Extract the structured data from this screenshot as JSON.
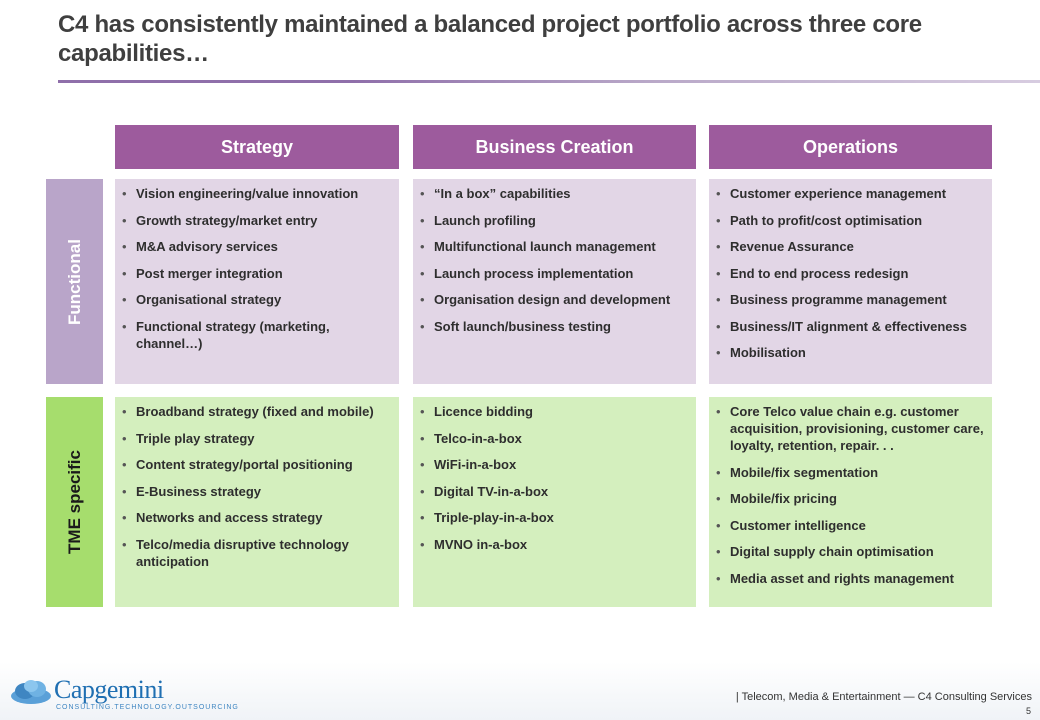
{
  "title": "C4 has consistently maintained a balanced project portfolio across three core capabilities…",
  "colors": {
    "header": "#9d5b9d",
    "functional_label": "#b9a5c9",
    "functional_cell": "#e2d6e6",
    "tme_label": "#a6dd6d",
    "tme_cell": "#d4efbe"
  },
  "columns": [
    "Strategy",
    "Business Creation",
    "Operations"
  ],
  "rows": [
    {
      "label": "Functional",
      "cells": [
        [
          "Vision engineering/value innovation",
          "Growth strategy/market entry",
          "M&A advisory services",
          "Post merger integration",
          "Organisational strategy",
          "Functional strategy (marketing, channel…)"
        ],
        [
          "“In a box” capabilities",
          "Launch profiling",
          "Multifunctional launch management",
          "Launch process implementation",
          "Organisation design and development",
          "Soft launch/business testing"
        ],
        [
          "Customer experience management",
          "Path to profit/cost optimisation",
          "Revenue Assurance",
          "End to end process redesign",
          "Business programme management",
          "Business/IT alignment & effectiveness",
          "Mobilisation"
        ]
      ]
    },
    {
      "label": "TME specific",
      "cells": [
        [
          "Broadband strategy (fixed and mobile)",
          "Triple play strategy",
          "Content strategy/portal positioning",
          "E-Business strategy",
          "Networks and access strategy",
          "Telco/media disruptive technology anticipation"
        ],
        [
          "Licence bidding",
          "Telco-in-a-box",
          "WiFi-in-a-box",
          "Digital TV-in-a-box",
          "Triple-play-in-a-box",
          "MVNO in-a-box"
        ],
        [
          "Core Telco value chain e.g. customer acquisition, provisioning, customer care, loyalty, retention, repair. . .",
          "Mobile/fix segmentation",
          "Mobile/fix pricing",
          "Customer intelligence",
          "Digital supply chain optimisation",
          "Media asset and rights management"
        ]
      ]
    }
  ],
  "footer": {
    "logo_name": "Capgemini",
    "logo_tagline": "CONSULTING.TECHNOLOGY.OUTSOURCING",
    "logo_icon": "spade-cloud-icon",
    "text": "| Telecom, Media & Entertainment — C4 Consulting Services",
    "page_number": "5"
  }
}
